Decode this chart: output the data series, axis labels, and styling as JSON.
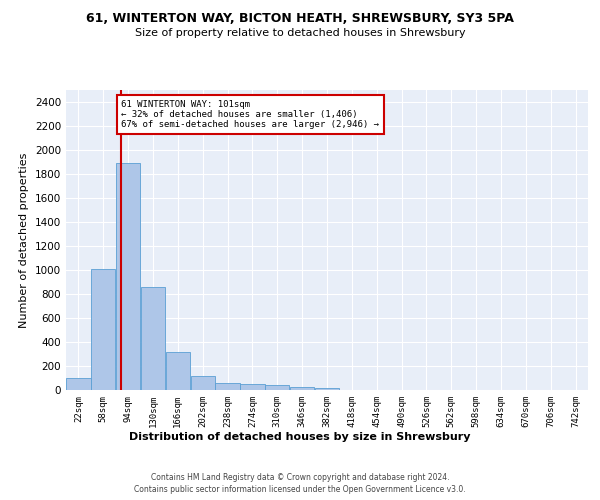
{
  "title": "61, WINTERTON WAY, BICTON HEATH, SHREWSBURY, SY3 5PA",
  "subtitle": "Size of property relative to detached houses in Shrewsbury",
  "xlabel": "Distribution of detached houses by size in Shrewsbury",
  "ylabel": "Number of detached properties",
  "bar_color": "#aec6e8",
  "bar_edge_color": "#5a9fd4",
  "bin_labels": [
    "22sqm",
    "58sqm",
    "94sqm",
    "130sqm",
    "166sqm",
    "202sqm",
    "238sqm",
    "274sqm",
    "310sqm",
    "346sqm",
    "382sqm",
    "418sqm",
    "454sqm",
    "490sqm",
    "526sqm",
    "562sqm",
    "598sqm",
    "634sqm",
    "670sqm",
    "706sqm",
    "742sqm"
  ],
  "bar_heights": [
    100,
    1010,
    1890,
    860,
    315,
    120,
    60,
    50,
    40,
    25,
    15,
    0,
    0,
    0,
    0,
    0,
    0,
    0,
    0,
    0,
    0
  ],
  "ylim": [
    0,
    2500
  ],
  "yticks": [
    0,
    200,
    400,
    600,
    800,
    1000,
    1200,
    1400,
    1600,
    1800,
    2000,
    2200,
    2400
  ],
  "bin_edges": [
    22,
    58,
    94,
    130,
    166,
    202,
    238,
    274,
    310,
    346,
    382,
    418,
    454,
    490,
    526,
    562,
    598,
    634,
    670,
    706,
    742
  ],
  "annotation_title": "61 WINTERTON WAY: 101sqm",
  "annotation_line1": "← 32% of detached houses are smaller (1,406)",
  "annotation_line2": "67% of semi-detached houses are larger (2,946) →",
  "annotation_box_color": "#ffffff",
  "annotation_box_edge": "#cc0000",
  "vline_color": "#cc0000",
  "background_color": "#e8eef8",
  "footer_line1": "Contains HM Land Registry data © Crown copyright and database right 2024.",
  "footer_line2": "Contains public sector information licensed under the Open Government Licence v3.0."
}
